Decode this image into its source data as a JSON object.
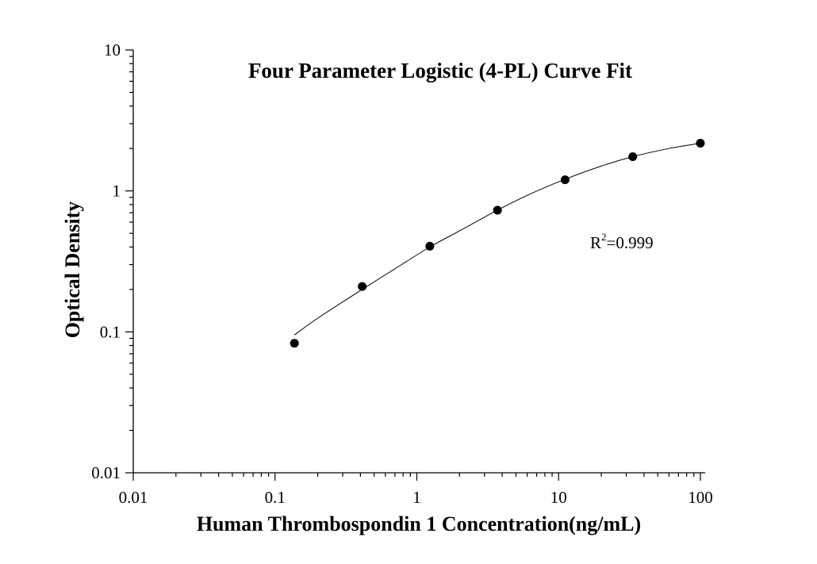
{
  "chart_data": {
    "type": "scatter",
    "title": "Four Parameter Logistic (4-PL) Curve Fit",
    "xlabel": "Human Thrombospondin 1 Concentration(ng/mL)",
    "ylabel": "Optical Density",
    "x_scale": "log",
    "y_scale": "log",
    "xlim": [
      0.01,
      100
    ],
    "ylim": [
      0.01,
      10
    ],
    "x_ticks": [
      {
        "value": 0.01,
        "label": "0.01"
      },
      {
        "value": 0.1,
        "label": "0.1"
      },
      {
        "value": 1,
        "label": "1"
      },
      {
        "value": 10,
        "label": "10"
      },
      {
        "value": 100,
        "label": "100"
      }
    ],
    "y_ticks": [
      {
        "value": 0.01,
        "label": "0.01"
      },
      {
        "value": 0.1,
        "label": "0.1"
      },
      {
        "value": 1,
        "label": "1"
      },
      {
        "value": 10,
        "label": "10"
      }
    ],
    "grid": false,
    "points": [
      {
        "x": 0.137,
        "y": 0.083
      },
      {
        "x": 0.412,
        "y": 0.21
      },
      {
        "x": 1.235,
        "y": 0.405
      },
      {
        "x": 3.704,
        "y": 0.73
      },
      {
        "x": 11.11,
        "y": 1.2
      },
      {
        "x": 33.33,
        "y": 1.75
      },
      {
        "x": 100,
        "y": 2.18
      }
    ],
    "fit": {
      "model": "4-PL",
      "x_range": [
        0.137,
        100
      ],
      "curve": [
        {
          "x": 0.137,
          "y": 0.095
        },
        {
          "x": 0.2,
          "y": 0.125
        },
        {
          "x": 0.412,
          "y": 0.2
        },
        {
          "x": 0.7,
          "y": 0.28
        },
        {
          "x": 1.235,
          "y": 0.4
        },
        {
          "x": 2.0,
          "y": 0.52
        },
        {
          "x": 3.704,
          "y": 0.73
        },
        {
          "x": 6.0,
          "y": 0.93
        },
        {
          "x": 11.11,
          "y": 1.21
        },
        {
          "x": 20.0,
          "y": 1.5
        },
        {
          "x": 33.33,
          "y": 1.75
        },
        {
          "x": 60.0,
          "y": 2.0
        },
        {
          "x": 100,
          "y": 2.18
        }
      ]
    },
    "annotation": {
      "base": "R",
      "sup": "2",
      "rest": "=0.999"
    }
  }
}
